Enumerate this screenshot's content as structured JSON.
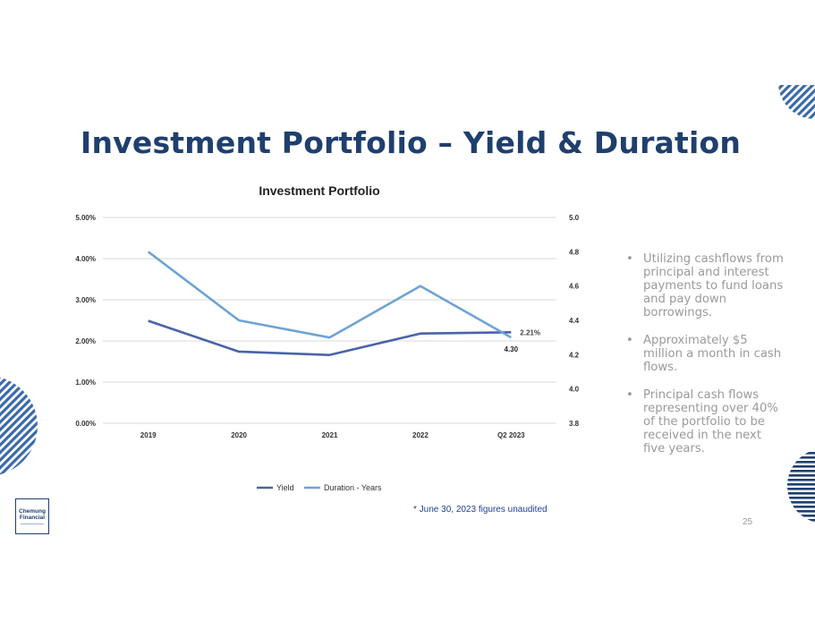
{
  "slide": {
    "title": "Investment Portfolio – Yield & Duration",
    "footnote": "* June 30, 2023 figures unaudited",
    "page_number": "25",
    "logo_text": [
      "Chemung",
      "Financial"
    ]
  },
  "bullets": [
    "Utilizing cashflows from principal and interest payments to fund loans and pay down borrowings.",
    "Approximately $5 million a month in cash flows.",
    "Principal cash flows representing over 40% of the portfolio to be received in the next five years."
  ],
  "colors": {
    "title": "#1f3f6e",
    "yield": "#4a63a8",
    "duration": "#6fa3d4",
    "grid": "#d9d9d9",
    "deco": "#3a6aa8"
  },
  "chart_data": {
    "type": "line",
    "title": "Investment Portfolio",
    "categories": [
      "2019",
      "2020",
      "2021",
      "2022",
      "Q2 2023"
    ],
    "series": [
      {
        "name": "Yield",
        "axis": "left",
        "values": [
          2.49,
          1.74,
          1.66,
          2.18,
          2.21
        ]
      },
      {
        "name": "Duration - Years",
        "axis": "right",
        "values": [
          4.8,
          4.4,
          4.3,
          4.6,
          4.3
        ]
      }
    ],
    "left_axis": {
      "min": 0,
      "max": 5,
      "step": 1,
      "ticks": [
        "0.00%",
        "1.00%",
        "2.00%",
        "3.00%",
        "4.00%",
        "5.00%"
      ]
    },
    "right_axis": {
      "min": 3.8,
      "max": 5.0,
      "step": 0.2,
      "ticks": [
        "3.8",
        "4.0",
        "4.2",
        "4.4",
        "4.6",
        "4.8",
        "5.0"
      ]
    },
    "data_labels": [
      {
        "series": "Yield",
        "index": 4,
        "text": "2.21%"
      },
      {
        "series": "Duration - Years",
        "index": 4,
        "text": "4.30"
      }
    ],
    "legend": "bottom",
    "grid": true
  }
}
